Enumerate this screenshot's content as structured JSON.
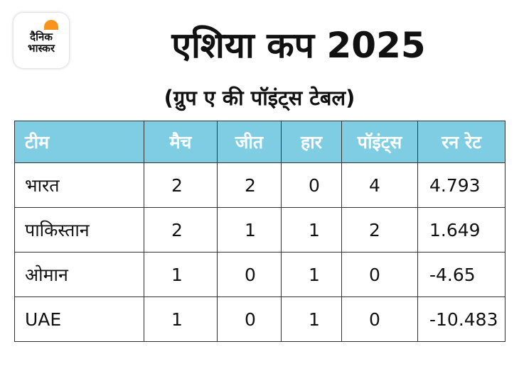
{
  "logo": {
    "line1": "दैनिक",
    "line2": "भास्कर"
  },
  "title": "एशिया कप 2025",
  "subtitle": "(ग्रुप ए की पॉइंट्स टेबल)",
  "colors": {
    "header_bg": "#7ecde3",
    "header_text": "#ffffff",
    "logo_accent": "#f7941d"
  },
  "table": {
    "headers": [
      "टीम",
      "मैच",
      "जीत",
      "हार",
      "पॉइंट्स",
      "रन रेट"
    ],
    "rows": [
      [
        "भारत",
        "2",
        "2",
        "0",
        "4",
        "4.793"
      ],
      [
        "पाकिस्तान",
        "2",
        "1",
        "1",
        "2",
        "1.649"
      ],
      [
        "ओमान",
        "1",
        "0",
        "1",
        "0",
        "-4.65"
      ],
      [
        "UAE",
        "1",
        "0",
        "1",
        "0",
        "-10.483"
      ]
    ]
  }
}
